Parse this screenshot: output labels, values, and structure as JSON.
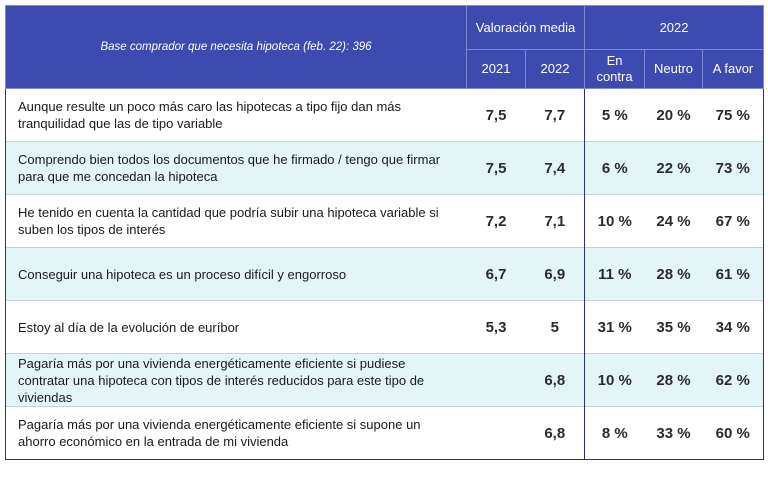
{
  "header": {
    "base_note": "Base comprador que necesita hipoteca (feb. 22): 396",
    "group_valoracion": "Valoración media",
    "group_year": "2022",
    "col_2021": "2021",
    "col_2022": "2022",
    "col_contra": "En contra",
    "col_neutro": "Neutro",
    "col_favor": "A favor"
  },
  "rows": [
    {
      "statement": "Aunque resulte un poco más caro las hipotecas a tipo fijo dan más tranquilidad que las de tipo variable",
      "v2021": "7,5",
      "v2022": "7,7",
      "contra": "5 %",
      "neutro": "20 %",
      "favor": "75 %"
    },
    {
      "statement": "Comprendo bien todos los documentos que he firmado / tengo que firmar para que me concedan la hipoteca",
      "v2021": "7,5",
      "v2022": "7,4",
      "contra": "6 %",
      "neutro": "22 %",
      "favor": "73 %"
    },
    {
      "statement": "He tenido en cuenta la cantidad que podría subir una hipoteca variable si suben los tipos de interés",
      "v2021": "7,2",
      "v2022": "7,1",
      "contra": "10 %",
      "neutro": "24 %",
      "favor": "67 %"
    },
    {
      "statement": "Conseguir una hipoteca es un proceso difícil y engorroso",
      "v2021": "6,7",
      "v2022": "6,9",
      "contra": "11 %",
      "neutro": "28 %",
      "favor": "61 %"
    },
    {
      "statement": "Estoy al día de la evolución de euríbor",
      "v2021": "5,3",
      "v2022": "5",
      "contra": "31 %",
      "neutro": "35 %",
      "favor": "34 %"
    },
    {
      "statement": "Pagaría más por una vivienda energéticamente eficiente si pudiese contratar una hipoteca con tipos de interés reducidos para este tipo de viviendas",
      "v2021": "",
      "v2022": "6,8",
      "contra": "10 %",
      "neutro": "28 %",
      "favor": "62 %"
    },
    {
      "statement": "Pagaría más por una vivienda energéticamente eficiente si supone un ahorro económico en la entrada de mi vivienda",
      "v2021": "",
      "v2022": "6,8",
      "contra": "8 %",
      "neutro": "33 %",
      "favor": "60 %"
    }
  ]
}
